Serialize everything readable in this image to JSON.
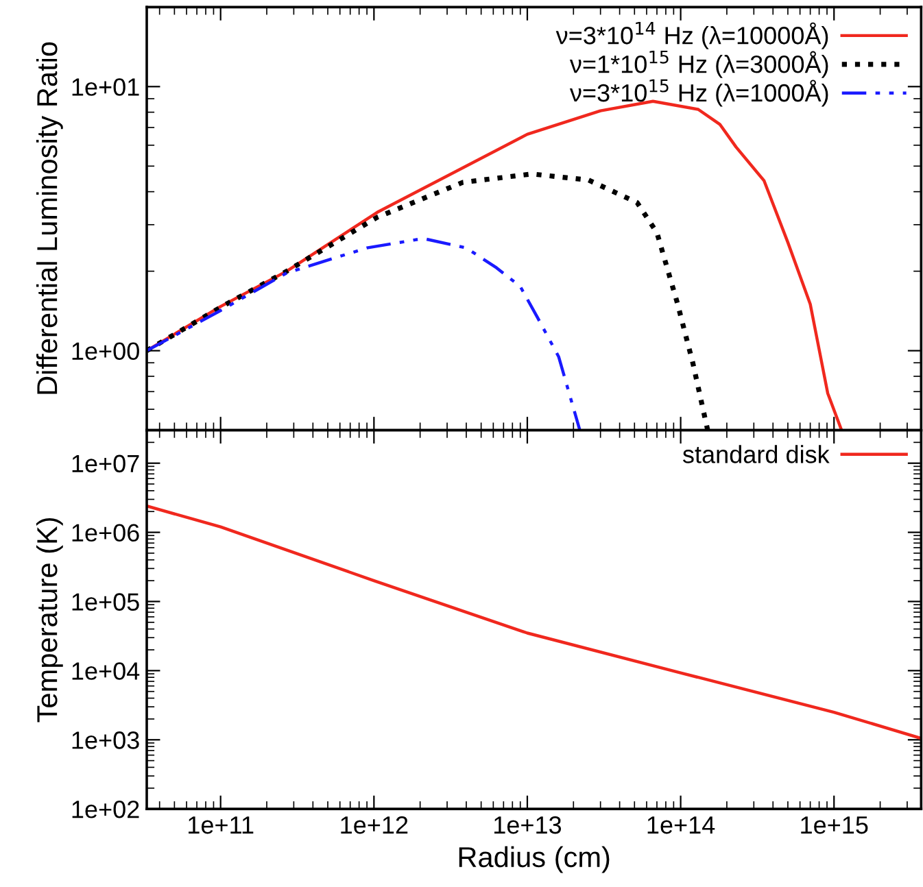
{
  "chart_data": [
    {
      "type": "line",
      "ylabel": "Differential Luminosity Ratio",
      "log": "xy",
      "xlim": [
        33000000000.0,
        3700000000000000.0
      ],
      "ylim": [
        0.5,
        20
      ],
      "xticks": [
        {
          "value": 100000000000.0,
          "label": null
        },
        {
          "value": 1000000000000.0,
          "label": null
        },
        {
          "value": 10000000000000.0,
          "label": null
        },
        {
          "value": 100000000000000.0,
          "label": null
        },
        {
          "value": 1000000000000000.0,
          "label": null
        }
      ],
      "yticks": [
        {
          "value": 1,
          "label": "1e+00"
        },
        {
          "value": 10,
          "label": "1e+01"
        }
      ],
      "tick_labels": "y",
      "legend": "top right",
      "grid": false,
      "series": [
        {
          "name": "ν=3*10$^{14}$ Hz (λ=10000Å)",
          "color": "#f0281e",
          "line_style": "solid",
          "x": [
            33000000000.0,
            100000000000.0,
            270000000000.0,
            1050000000000.0,
            10000000000000.0,
            30000000000000.0,
            66000000000000.0,
            130000000000000.0,
            180000000000000.0,
            230000000000000.0,
            350000000000000.0,
            500000000000000.0,
            700000000000000.0,
            910000000000000.0,
            1120000000000000.0
          ],
          "values": [
            1,
            1.47,
            2.0,
            3.34,
            6.6,
            8.1,
            8.8,
            8.2,
            7.2,
            5.9,
            4.4,
            2.57,
            1.5,
            0.69,
            0.5
          ]
        },
        {
          "name": "ν=1*10$^{15}$ Hz (λ=3000Å)",
          "color": "#000000",
          "line_style": "dotted",
          "x": [
            33000000000.0,
            100000000000.0,
            270000000000.0,
            1050000000000.0,
            3800000000000.0,
            10700000000000.0,
            25000000000000.0,
            52000000000000.0,
            70000000000000.0,
            95000000000000.0,
            120000000000000.0,
            150000000000000.0
          ],
          "values": [
            1,
            1.46,
            2.0,
            3.2,
            4.34,
            4.67,
            4.43,
            3.64,
            2.8,
            1.52,
            0.9,
            0.5
          ]
        },
        {
          "name": "ν=3*10$^{15}$ Hz (λ=1000Å)",
          "color": "#1a1aff",
          "line_style": "dashdot",
          "x": [
            33000000000.0,
            100000000000.0,
            270000000000.0,
            900000000000.0,
            2100000000000.0,
            4000000000000.0,
            6300000000000.0,
            9000000000000.0,
            11700000000000.0,
            16000000000000.0,
            22000000000000.0
          ],
          "values": [
            1,
            1.42,
            1.97,
            2.45,
            2.66,
            2.45,
            2.06,
            1.75,
            1.33,
            0.95,
            0.5
          ]
        }
      ]
    },
    {
      "type": "line",
      "xlabel": "Radius (cm)",
      "ylabel": "Temperature (K)",
      "log": "xy",
      "xlim": [
        33000000000.0,
        3700000000000000.0
      ],
      "ylim": [
        100,
        30000000.0
      ],
      "xticks": [
        {
          "value": 100000000000.0,
          "label": "1e+11"
        },
        {
          "value": 1000000000000.0,
          "label": "1e+12"
        },
        {
          "value": 10000000000000.0,
          "label": "1e+13"
        },
        {
          "value": 100000000000000.0,
          "label": "1e+14"
        },
        {
          "value": 1000000000000000.0,
          "label": "1e+15"
        }
      ],
      "yticks": [
        {
          "value": 100,
          "label": "1e+02"
        },
        {
          "value": 1000,
          "label": "1e+03"
        },
        {
          "value": 10000,
          "label": "1e+04"
        },
        {
          "value": 100000,
          "label": "1e+05"
        },
        {
          "value": 1000000,
          "label": "1e+06"
        },
        {
          "value": 10000000,
          "label": "1e+07"
        }
      ],
      "legend": "top right",
      "grid": false,
      "series": [
        {
          "name": "standard disk",
          "color": "#f0281e",
          "line_style": "solid",
          "x": [
            33000000000.0,
            100000000000.0,
            1000000000000.0,
            10000000000000.0,
            100000000000000.0,
            1000000000000000.0,
            3700000000000000.0
          ],
          "values": [
            2400000.0,
            1200000.0,
            200000.0,
            35000.0,
            9300.0,
            2500.0,
            1050.0
          ]
        }
      ]
    }
  ]
}
